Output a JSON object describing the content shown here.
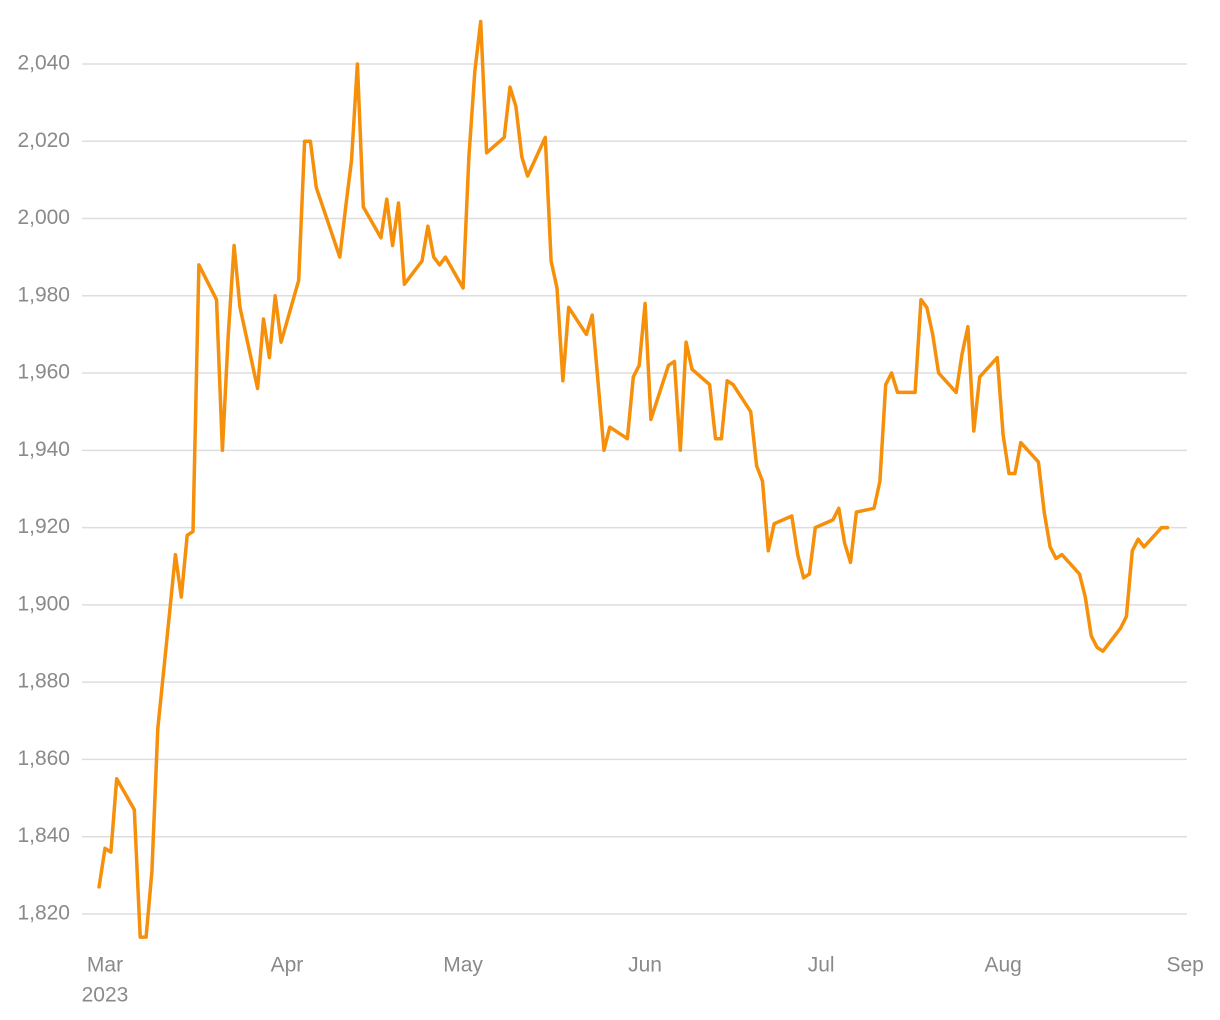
{
  "chart_data": {
    "type": "line",
    "x": [
      -1,
      0,
      1,
      2,
      5,
      6,
      7,
      8,
      9,
      11,
      12,
      13,
      14,
      15,
      16,
      19,
      20,
      21,
      22,
      23,
      26,
      27,
      28,
      29,
      30,
      33,
      34,
      35,
      36,
      40,
      41,
      42,
      43,
      44,
      47,
      48,
      49,
      50,
      51,
      54,
      55,
      56,
      57,
      58,
      61,
      62,
      63,
      64,
      65,
      68,
      69,
      70,
      71,
      72,
      75,
      76,
      77,
      78,
      79,
      82,
      83,
      85,
      86,
      89,
      90,
      91,
      92,
      93,
      96,
      97,
      98,
      99,
      100,
      103,
      104,
      105,
      106,
      107,
      110,
      111,
      112,
      113,
      114,
      117,
      118,
      119,
      120,
      121,
      124,
      125,
      126,
      127,
      128,
      131,
      132,
      133,
      134,
      135,
      138,
      139,
      140,
      141,
      142,
      145,
      146,
      147,
      148,
      149,
      152,
      153,
      154,
      155,
      156,
      159,
      160,
      161,
      162,
      163,
      166,
      167,
      168,
      169,
      170,
      173,
      174,
      175,
      176,
      177,
      180,
      181
    ],
    "values": [
      1827,
      1837,
      1836,
      1855,
      1847,
      1814,
      1814,
      1831,
      1868,
      1898,
      1913,
      1902,
      1918,
      1919,
      1988,
      1979,
      1940,
      1970,
      1993,
      1977,
      1956,
      1974,
      1964,
      1980,
      1968,
      1984,
      2020,
      2020,
      2008,
      1990,
      2003,
      2015,
      2040,
      2003,
      1995,
      2005,
      1993,
      2004,
      1983,
      1989,
      1998,
      1990,
      1988,
      1990,
      1982,
      2016,
      2038,
      2051,
      2017,
      2021,
      2034,
      2029,
      2016,
      2011,
      2021,
      1989,
      1982,
      1958,
      1977,
      1970,
      1975,
      1940,
      1946,
      1943,
      1959,
      1962,
      1978,
      1948,
      1962,
      1963,
      1940,
      1968,
      1961,
      1957,
      1943,
      1943,
      1958,
      1957,
      1950,
      1936,
      1932,
      1914,
      1921,
      1923,
      1913,
      1907,
      1908,
      1920,
      1922,
      1925,
      1916,
      1911,
      1924,
      1925,
      1932,
      1957,
      1960,
      1955,
      1955,
      1979,
      1977,
      1970,
      1960,
      1955,
      1965,
      1972,
      1945,
      1959,
      1964,
      1944,
      1934,
      1934,
      1942,
      1937,
      1924,
      1915,
      1912,
      1913,
      1908,
      1902,
      1892,
      1889,
      1888,
      1894,
      1897,
      1914,
      1917,
      1915,
      1920,
      1920
    ],
    "color": "#f68f0a",
    "xlim": [
      -4,
      185
    ],
    "xticks": [
      {
        "value": 0,
        "label": "Mar",
        "sublabel": "2023"
      },
      {
        "value": 31,
        "label": "Apr"
      },
      {
        "value": 61,
        "label": "May"
      },
      {
        "value": 92,
        "label": "Jun"
      },
      {
        "value": 122,
        "label": "Jul"
      },
      {
        "value": 153,
        "label": "Aug"
      },
      {
        "value": 184,
        "label": "Sep"
      }
    ],
    "ylim": [
      1810,
      2055
    ],
    "yticks": [
      {
        "value": 1820,
        "label": "1,820"
      },
      {
        "value": 1840,
        "label": "1,840"
      },
      {
        "value": 1860,
        "label": "1,860"
      },
      {
        "value": 1880,
        "label": "1,880"
      },
      {
        "value": 1900,
        "label": "1,900"
      },
      {
        "value": 1920,
        "label": "1,920"
      },
      {
        "value": 1940,
        "label": "1,940"
      },
      {
        "value": 1960,
        "label": "1,960"
      },
      {
        "value": 1980,
        "label": "1,980"
      },
      {
        "value": 2000,
        "label": "2,000"
      },
      {
        "value": 2020,
        "label": "2,020"
      },
      {
        "value": 2040,
        "label": "2,040"
      }
    ],
    "grid": true
  }
}
